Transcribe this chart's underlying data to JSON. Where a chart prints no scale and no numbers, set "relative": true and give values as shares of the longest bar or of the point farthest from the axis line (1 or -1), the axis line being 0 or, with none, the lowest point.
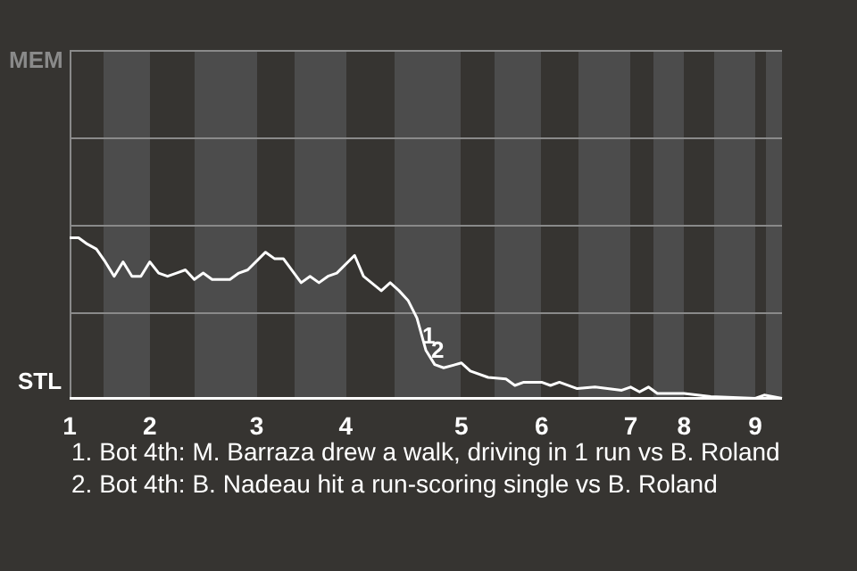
{
  "chart_data": {
    "type": "line",
    "relative": true,
    "categories": [
      "1",
      null,
      null,
      null,
      null,
      null,
      null,
      null,
      null,
      "2",
      null,
      null,
      null,
      null,
      null,
      null,
      null,
      null,
      null,
      null,
      null,
      "3",
      null,
      null,
      null,
      null,
      null,
      null,
      null,
      null,
      null,
      "4",
      null,
      null,
      null,
      null,
      null,
      null,
      null,
      null,
      null,
      null,
      null,
      null,
      "5",
      null,
      null,
      null,
      null,
      null,
      null,
      null,
      null,
      "6",
      null,
      null,
      null,
      null,
      null,
      null,
      null,
      null,
      null,
      "7",
      null,
      null,
      null,
      null,
      null,
      "8",
      null,
      null,
      null,
      null,
      null,
      null,
      null,
      "9",
      null,
      null,
      null
    ],
    "series": [
      {
        "color": "#ffffff",
        "values": [
          1,
          1,
          0.96,
          0.93,
          0.85,
          0.76,
          0.85,
          0.76,
          0.76,
          0.85,
          0.78,
          0.76,
          0.78,
          0.8,
          0.74,
          0.78,
          0.74,
          null,
          0.74,
          0.78,
          0.8,
          null,
          0.91,
          0.87,
          0.87,
          null,
          0.72,
          0.76,
          0.72,
          0.76,
          0.78,
          null,
          0.89,
          0.76,
          null,
          0.67,
          0.72,
          0.67,
          0.61,
          0.5,
          0.3,
          0.21,
          0.19,
          null,
          0.22,
          0.17,
          null,
          0.13,
          null,
          0.12,
          0.08,
          0.1,
          null,
          0.1,
          0.08,
          0.1,
          null,
          0.06,
          null,
          0.07,
          null,
          null,
          0.05,
          0.07,
          0.04,
          0.07,
          0.03,
          null,
          null,
          0.03,
          null,
          null,
          0.01,
          null,
          null,
          null,
          null,
          0,
          0.02,
          null,
          0
        ]
      }
    ],
    "ref_lines": [
      {
        "axis": "y",
        "value": 0.54,
        "color": "#8a8a8a"
      }
    ],
    "legend": false,
    "marker": "none",
    "line_style": "solid",
    "annotations": [
      "MEM",
      "STL",
      {
        "text": "1",
        "y": 0.3
      },
      {
        "text": "2",
        "y": 0.21
      },
      "1. Bot 4th: M. Barraza drew a walk, driving in 1 run vs B. Roland",
      "2. Bot 4th: B. Nadeau hit a run-scoring single vs B. Roland"
    ]
  }
}
